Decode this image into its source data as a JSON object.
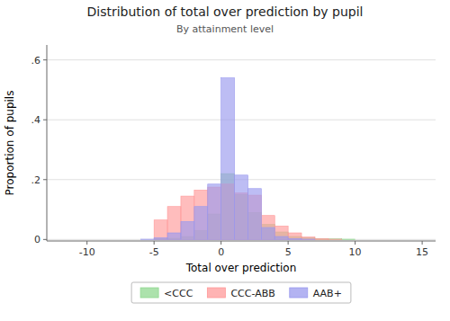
{
  "chart_data": {
    "type": "histogram",
    "title": "Distribution of total over prediction by pupil",
    "subtitle": "By attainment level",
    "x_label": "Total over prediction",
    "y_label": "Proportion of pupils",
    "xlim": [
      -13,
      16
    ],
    "ylim": [
      -0.005,
      0.65
    ],
    "xticks": [
      -10,
      -5,
      0,
      5,
      10,
      15
    ],
    "yticks": [
      0,
      {
        "value": 0.2,
        "label": ".2"
      },
      {
        "value": 0.4,
        "label": ".4"
      },
      {
        "value": 0.6,
        "label": ".6"
      }
    ],
    "bins": [
      -13,
      -12,
      -11,
      -10,
      -9,
      -8,
      -7,
      -6,
      -5,
      -4,
      -3,
      -2,
      -1,
      0,
      1,
      2,
      3,
      4,
      5,
      6,
      7,
      8,
      9,
      10,
      11,
      12,
      13,
      14,
      15
    ],
    "series": [
      {
        "name": "<CCC",
        "color": "#90d890",
        "values": [
          0.0,
          0.0,
          0.0,
          0.0,
          0.0,
          0.0,
          0.0,
          0.0,
          0.002,
          0.004,
          0.01,
          0.03,
          0.085,
          0.22,
          0.15,
          0.09,
          0.05,
          0.025,
          0.01,
          0.005,
          0.003,
          0.002,
          0.001,
          0.0,
          0.0,
          0.0,
          0.0,
          0.0
        ]
      },
      {
        "name": "CCC-ABB",
        "color": "#ff9999",
        "values": [
          0.0,
          0.0,
          0.0,
          0.0,
          0.0,
          0.0,
          0.0,
          0.0,
          0.065,
          0.11,
          0.145,
          0.165,
          0.175,
          0.185,
          0.155,
          0.148,
          0.08,
          0.045,
          0.022,
          0.008,
          0.003,
          0.001,
          0.0,
          0.0,
          0.0,
          0.0,
          0.0,
          0.0
        ]
      },
      {
        "name": "AAB+",
        "color": "#9999ee",
        "values": [
          0.0,
          0.0,
          0.0,
          0.0,
          0.0,
          0.0,
          0.0,
          0.001,
          0.006,
          0.022,
          0.06,
          0.11,
          0.185,
          0.54,
          0.215,
          0.17,
          0.04,
          0.01,
          0.003,
          0.001,
          0.0,
          0.0,
          0.0,
          0.0,
          0.0,
          0.0,
          0.0,
          0.0
        ]
      }
    ],
    "grid": true,
    "legend": "bottom"
  }
}
